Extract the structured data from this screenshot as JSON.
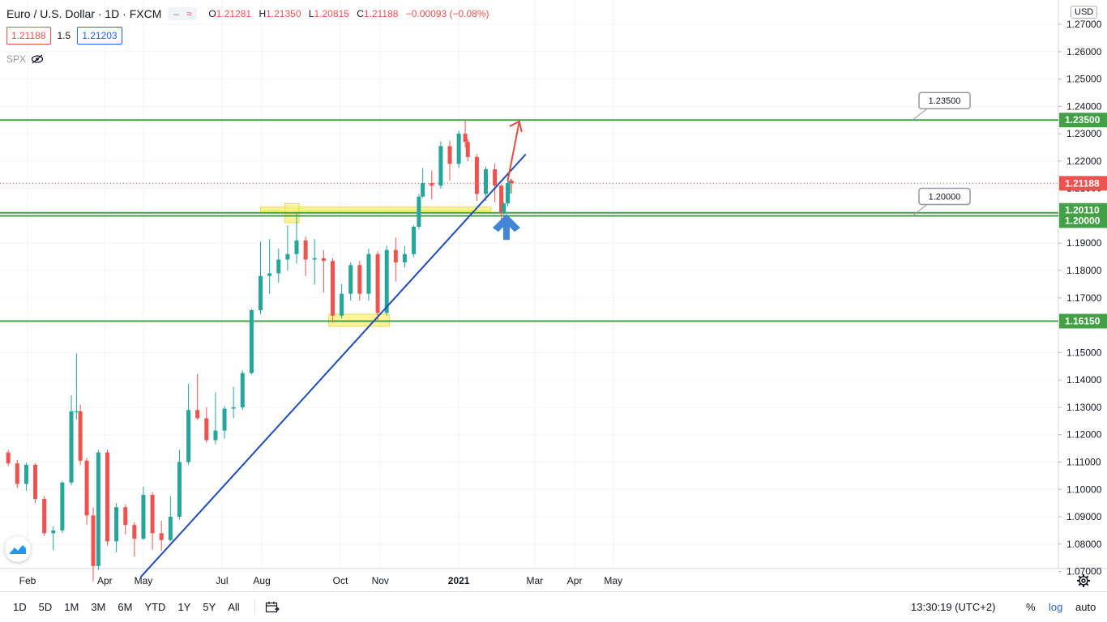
{
  "header": {
    "symbol": "Euro / U.S. Dollar · 1D · FXCM",
    "control_icons": [
      "minus-icon",
      "approx-icon"
    ],
    "open_label": "O",
    "open": "1.21281",
    "high_label": "H",
    "high": "1.21350",
    "low_label": "L",
    "low": "1.20815",
    "close_label": "C",
    "close": "1.21188",
    "change": "−0.00093 (−0.08%)"
  },
  "quote": {
    "bid": "1.21188",
    "spread": "1.5",
    "ask": "1.21203"
  },
  "indicator": {
    "name": "SPX",
    "icon": "eye-off-icon"
  },
  "currency": "USD",
  "bottom": {
    "periods": [
      "1D",
      "5D",
      "1M",
      "3M",
      "6M",
      "YTD",
      "1Y",
      "5Y",
      "All"
    ],
    "time": "13:30:19 (UTC+2)",
    "percent": "%",
    "log": "log",
    "auto": "auto"
  },
  "chart_data": {
    "type": "candlestick",
    "title": "Euro / U.S. Dollar · 1D · FXCM",
    "y_ticks": [
      "1.27000",
      "1.26000",
      "1.25000",
      "1.24000",
      "1.23000",
      "1.22000",
      "1.21000",
      "1.20000",
      "1.19000",
      "1.18000",
      "1.17000",
      "1.16000",
      "1.15000",
      "1.14000",
      "1.13000",
      "1.12000",
      "1.11000",
      "1.10000",
      "1.09000",
      "1.08000",
      "1.07000"
    ],
    "x_ticks": [
      "Feb",
      "Apr",
      "May",
      "Jul",
      "Aug",
      "Oct",
      "Nov",
      "2021",
      "Mar",
      "Apr",
      "May"
    ],
    "ylim": [
      1.0655,
      1.2742
    ],
    "colors": {
      "up": "#26a69a",
      "down": "#ef5350",
      "support": "#43a047",
      "trend": "#1e4db7",
      "zone": "#fff176",
      "arrow_up": "#4285d6",
      "arrow_target": "#e84c3d",
      "current": "#ef5350"
    },
    "horizontal_levels": [
      {
        "price": "1.23500",
        "value": 1.235,
        "label": "1.23500",
        "callout": "1.23500"
      },
      {
        "price": "1.20110",
        "value": 1.2011,
        "label": "1.20110"
      },
      {
        "price": "1.20000",
        "value": 1.2,
        "label": "1.20000",
        "callout": "1.20000"
      },
      {
        "price": "1.16150",
        "value": 1.1615,
        "label": "1.16150"
      }
    ],
    "current_price": {
      "label": "1.21188",
      "value": 1.21188
    },
    "trendline": {
      "start": {
        "date": "2020-04-29",
        "price": 1.068
      },
      "end": {
        "date": "2021-02-22",
        "price": 1.2225
      }
    },
    "zones": [
      {
        "x_from": "2020-07-31",
        "x_to": "2021-01-26",
        "price_from": 1.2018,
        "price_to": 1.2032
      },
      {
        "x_from": "2020-08-19",
        "x_to": "2020-08-30",
        "price_from": 1.1975,
        "price_to": 1.2045
      },
      {
        "x_from": "2020-09-22",
        "x_to": "2020-11-08",
        "price_from": 1.1596,
        "price_to": 1.164
      }
    ],
    "arrows": [
      {
        "name": "target-arrow",
        "from": {
          "date": "2021-02-08",
          "price": 1.2128
        },
        "to": {
          "date": "2021-02-17",
          "price": 1.2345
        }
      },
      {
        "name": "bounce-arrow",
        "date": "2021-02-07",
        "price": 1.1965
      }
    ],
    "candles": [
      {
        "d": "2020-01-17",
        "o": 1.1135,
        "h": 1.1145,
        "l": 1.1085,
        "c": 1.1095
      },
      {
        "d": "2020-01-24",
        "o": 1.1095,
        "h": 1.1108,
        "l": 1.1005,
        "c": 1.102
      },
      {
        "d": "2020-01-31",
        "o": 1.102,
        "h": 1.1098,
        "l": 1.0995,
        "c": 1.109
      },
      {
        "d": "2020-02-07",
        "o": 1.109,
        "h": 1.1095,
        "l": 1.095,
        "c": 1.0965
      },
      {
        "d": "2020-02-14",
        "o": 1.0965,
        "h": 1.0975,
        "l": 1.083,
        "c": 1.084
      },
      {
        "d": "2020-02-21",
        "o": 1.084,
        "h": 1.0865,
        "l": 1.0778,
        "c": 1.085
      },
      {
        "d": "2020-02-28",
        "o": 1.085,
        "h": 1.103,
        "l": 1.084,
        "c": 1.1025
      },
      {
        "d": "2020-03-06",
        "o": 1.1025,
        "h": 1.1345,
        "l": 1.1015,
        "c": 1.1285
      },
      {
        "d": "2020-03-10",
        "o": 1.1285,
        "h": 1.1497,
        "l": 1.1255,
        "c": 1.1285
      },
      {
        "d": "2020-03-13",
        "o": 1.1285,
        "h": 1.131,
        "l": 1.109,
        "c": 1.1105
      },
      {
        "d": "2020-03-18",
        "o": 1.1105,
        "h": 1.1115,
        "l": 1.087,
        "c": 1.0905
      },
      {
        "d": "2020-03-23",
        "o": 1.0905,
        "h": 1.0935,
        "l": 1.0665,
        "c": 1.072
      },
      {
        "d": "2020-03-27",
        "o": 1.072,
        "h": 1.1145,
        "l": 1.0705,
        "c": 1.1135
      },
      {
        "d": "2020-04-03",
        "o": 1.1135,
        "h": 1.1145,
        "l": 1.0795,
        "c": 1.081
      },
      {
        "d": "2020-04-10",
        "o": 1.081,
        "h": 1.095,
        "l": 1.077,
        "c": 1.0935
      },
      {
        "d": "2020-04-17",
        "o": 1.0935,
        "h": 1.0945,
        "l": 1.0835,
        "c": 1.087
      },
      {
        "d": "2020-04-24",
        "o": 1.087,
        "h": 1.088,
        "l": 1.0755,
        "c": 1.082
      },
      {
        "d": "2020-05-01",
        "o": 1.082,
        "h": 1.101,
        "l": 1.0815,
        "c": 1.098
      },
      {
        "d": "2020-05-08",
        "o": 1.098,
        "h": 1.099,
        "l": 1.078,
        "c": 1.084
      },
      {
        "d": "2020-05-15",
        "o": 1.084,
        "h": 1.0885,
        "l": 1.0775,
        "c": 1.0815
      },
      {
        "d": "2020-05-22",
        "o": 1.0815,
        "h": 1.0975,
        "l": 1.081,
        "c": 1.09
      },
      {
        "d": "2020-05-29",
        "o": 1.09,
        "h": 1.1145,
        "l": 1.089,
        "c": 1.11
      },
      {
        "d": "2020-06-05",
        "o": 1.11,
        "h": 1.1385,
        "l": 1.109,
        "c": 1.129
      },
      {
        "d": "2020-06-12",
        "o": 1.129,
        "h": 1.1422,
        "l": 1.1255,
        "c": 1.126
      },
      {
        "d": "2020-06-19",
        "o": 1.126,
        "h": 1.13,
        "l": 1.117,
        "c": 1.118
      },
      {
        "d": "2020-06-26",
        "o": 1.118,
        "h": 1.1355,
        "l": 1.1165,
        "c": 1.1215
      },
      {
        "d": "2020-07-03",
        "o": 1.1215,
        "h": 1.1305,
        "l": 1.1185,
        "c": 1.1295
      },
      {
        "d": "2020-07-10",
        "o": 1.1295,
        "h": 1.1375,
        "l": 1.126,
        "c": 1.13
      },
      {
        "d": "2020-07-17",
        "o": 1.13,
        "h": 1.1435,
        "l": 1.129,
        "c": 1.1425
      },
      {
        "d": "2020-07-24",
        "o": 1.1425,
        "h": 1.166,
        "l": 1.142,
        "c": 1.1655
      },
      {
        "d": "2020-07-31",
        "o": 1.1655,
        "h": 1.1905,
        "l": 1.164,
        "c": 1.178
      },
      {
        "d": "2020-08-07",
        "o": 1.178,
        "h": 1.1915,
        "l": 1.1715,
        "c": 1.179
      },
      {
        "d": "2020-08-14",
        "o": 1.179,
        "h": 1.188,
        "l": 1.1755,
        "c": 1.184
      },
      {
        "d": "2020-08-21",
        "o": 1.184,
        "h": 1.1965,
        "l": 1.18,
        "c": 1.186
      },
      {
        "d": "2020-08-28",
        "o": 1.186,
        "h": 1.2011,
        "l": 1.1825,
        "c": 1.191
      },
      {
        "d": "2020-09-04",
        "o": 1.191,
        "h": 1.1925,
        "l": 1.178,
        "c": 1.184
      },
      {
        "d": "2020-09-11",
        "o": 1.184,
        "h": 1.1915,
        "l": 1.175,
        "c": 1.1845
      },
      {
        "d": "2020-09-18",
        "o": 1.1845,
        "h": 1.1875,
        "l": 1.172,
        "c": 1.1835
      },
      {
        "d": "2020-09-25",
        "o": 1.1835,
        "h": 1.1845,
        "l": 1.161,
        "c": 1.1635
      },
      {
        "d": "2020-10-02",
        "o": 1.1635,
        "h": 1.175,
        "l": 1.1625,
        "c": 1.1715
      },
      {
        "d": "2020-10-09",
        "o": 1.1715,
        "h": 1.183,
        "l": 1.169,
        "c": 1.182
      },
      {
        "d": "2020-10-16",
        "o": 1.182,
        "h": 1.1835,
        "l": 1.169,
        "c": 1.1715
      },
      {
        "d": "2020-10-23",
        "o": 1.1715,
        "h": 1.188,
        "l": 1.169,
        "c": 1.186
      },
      {
        "d": "2020-10-30",
        "o": 1.186,
        "h": 1.187,
        "l": 1.1615,
        "c": 1.1645
      },
      {
        "d": "2020-11-06",
        "o": 1.1645,
        "h": 1.189,
        "l": 1.1635,
        "c": 1.1875
      },
      {
        "d": "2020-11-13",
        "o": 1.1875,
        "h": 1.192,
        "l": 1.176,
        "c": 1.183
      },
      {
        "d": "2020-11-20",
        "o": 1.183,
        "h": 1.189,
        "l": 1.181,
        "c": 1.186
      },
      {
        "d": "2020-11-27",
        "o": 1.186,
        "h": 1.1965,
        "l": 1.185,
        "c": 1.196
      },
      {
        "d": "2020-12-01",
        "o": 1.196,
        "h": 1.208,
        "l": 1.195,
        "c": 1.207
      },
      {
        "d": "2020-12-04",
        "o": 1.207,
        "h": 1.2175,
        "l": 1.2065,
        "c": 1.212
      },
      {
        "d": "2020-12-11",
        "o": 1.212,
        "h": 1.2165,
        "l": 1.206,
        "c": 1.211
      },
      {
        "d": "2020-12-18",
        "o": 1.211,
        "h": 1.2272,
        "l": 1.21,
        "c": 1.2255
      },
      {
        "d": "2020-12-25",
        "o": 1.2255,
        "h": 1.2275,
        "l": 1.213,
        "c": 1.219
      },
      {
        "d": "2021-01-01",
        "o": 1.219,
        "h": 1.231,
        "l": 1.2175,
        "c": 1.23
      },
      {
        "d": "2021-01-06",
        "o": 1.23,
        "h": 1.235,
        "l": 1.225,
        "c": 1.227
      },
      {
        "d": "2021-01-08",
        "o": 1.227,
        "h": 1.228,
        "l": 1.22,
        "c": 1.2215
      },
      {
        "d": "2021-01-15",
        "o": 1.2215,
        "h": 1.2225,
        "l": 1.2055,
        "c": 1.208
      },
      {
        "d": "2021-01-22",
        "o": 1.208,
        "h": 1.218,
        "l": 1.2055,
        "c": 1.217
      },
      {
        "d": "2021-01-29",
        "o": 1.217,
        "h": 1.219,
        "l": 1.205,
        "c": 1.211
      },
      {
        "d": "2021-02-03",
        "o": 1.211,
        "h": 1.2115,
        "l": 1.1955,
        "c": 1.201
      },
      {
        "d": "2021-02-05",
        "o": 1.201,
        "h": 1.205,
        "l": 1.199,
        "c": 1.2045
      },
      {
        "d": "2021-02-08",
        "o": 1.2045,
        "h": 1.213,
        "l": 1.2035,
        "c": 1.212
      },
      {
        "d": "2021-02-10",
        "o": 1.212,
        "h": 1.2135,
        "l": 1.208,
        "c": 1.2128
      },
      {
        "d": "2021-02-11",
        "o": 1.2128,
        "h": 1.2135,
        "l": 1.2082,
        "c": 1.2119
      }
    ]
  }
}
